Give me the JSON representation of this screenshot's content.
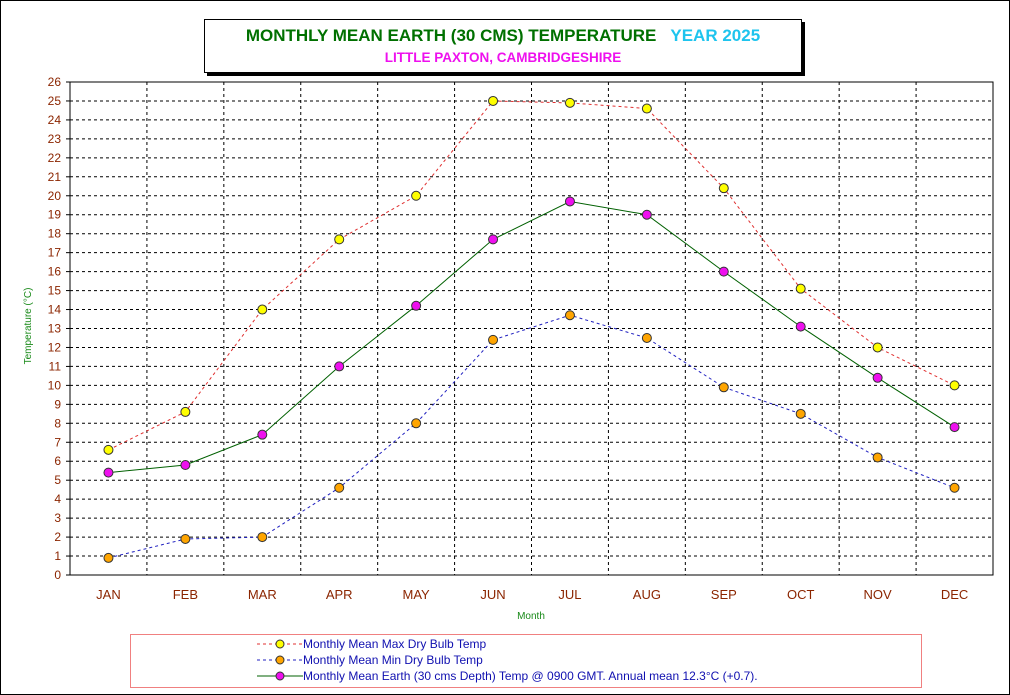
{
  "title": {
    "main": "MONTHLY MEAN  EARTH (30 CMS) TEMPERATURE",
    "year": "YEAR 2025",
    "subtitle": "LITTLE PAXTON, CAMBRIDGESHIRE"
  },
  "colors": {
    "max_line": "#e03030",
    "max_marker": "#ffff00",
    "min_line": "#2020c0",
    "min_marker": "#ffa500",
    "earth_line": "#006000",
    "earth_marker": "#ee10ee",
    "grid": "#000000",
    "tick_text": "#8b2500"
  },
  "chart_data": {
    "type": "line",
    "title": "MONTHLY MEAN  EARTH (30 CMS) TEMPERATURE  YEAR 2025",
    "subtitle": "LITTLE PAXTON, CAMBRIDGESHIRE",
    "xlabel": "Month",
    "ylabel": "Temperature (°C)",
    "ylim": [
      0,
      26
    ],
    "yticks": [
      "0",
      "1",
      "2",
      "3",
      "4",
      "5",
      "6",
      "7",
      "8",
      "9",
      "10",
      "11",
      "12",
      "13",
      "14",
      "15",
      "16",
      "17",
      "18",
      "19",
      "20",
      "21",
      "22",
      "23",
      "24",
      "25",
      "26"
    ],
    "grid": true,
    "categories": [
      "JAN",
      "FEB",
      "MAR",
      "APR",
      "MAY",
      "JUN",
      "JUL",
      "AUG",
      "SEP",
      "OCT",
      "NOV",
      "DEC"
    ],
    "series": [
      {
        "name": "Monthly Mean Max Dry Bulb Temp",
        "style": "dashed",
        "values": [
          6.6,
          8.6,
          14.0,
          17.7,
          20.0,
          25.0,
          24.9,
          24.6,
          20.4,
          15.1,
          12.0,
          10.0
        ]
      },
      {
        "name": "Monthly Mean Min Dry Bulb Temp",
        "style": "dashed",
        "values": [
          0.9,
          1.9,
          2.0,
          4.6,
          8.0,
          12.4,
          13.7,
          12.5,
          9.9,
          8.5,
          6.2,
          4.6
        ]
      },
      {
        "name": "Monthly Mean Earth (30 cms Depth) Temp @ 0900 GMT. Annual mean 12.3°C (+0.7).",
        "style": "solid",
        "values": [
          5.4,
          5.8,
          7.4,
          11.0,
          14.2,
          17.7,
          19.7,
          19.0,
          16.0,
          13.1,
          10.4,
          7.8
        ]
      }
    ]
  }
}
